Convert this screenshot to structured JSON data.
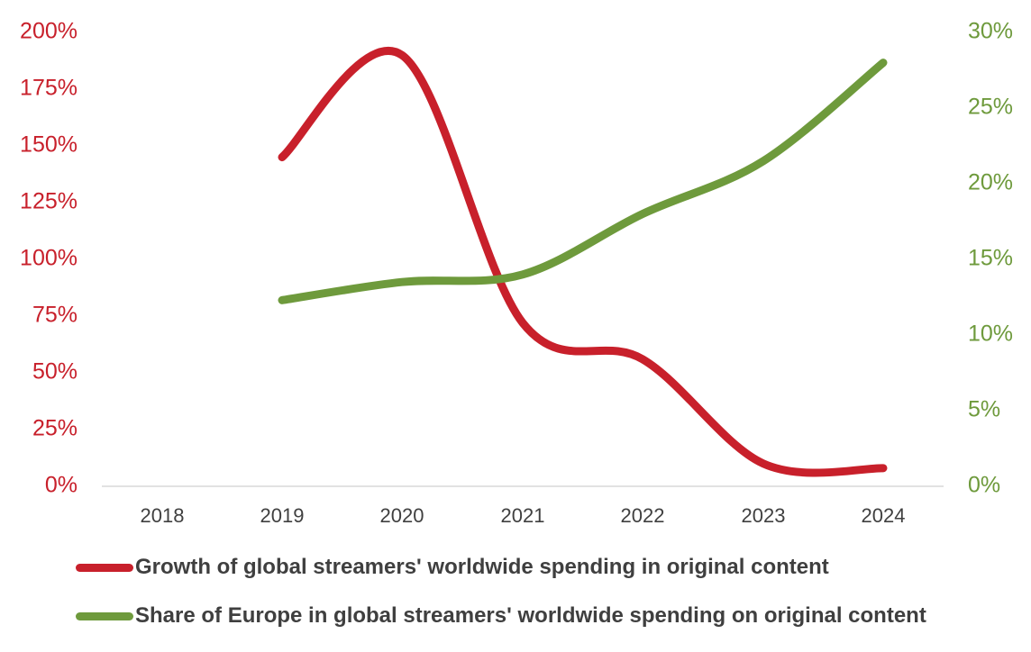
{
  "chart_data": {
    "type": "line",
    "categories": [
      "2018",
      "2019",
      "2020",
      "2021",
      "2022",
      "2023",
      "2024"
    ],
    "series": [
      {
        "name": "Growth of global streamers' worldwide spending in original content",
        "axis": "left",
        "color": "#c8202b",
        "values": [
          null,
          145,
          190,
          72,
          56,
          10,
          8
        ]
      },
      {
        "name": "Share of Europe in global streamers' worldwide spending on original content",
        "axis": "right",
        "color": "#6e9a3c",
        "values": [
          null,
          12.3,
          13.5,
          14,
          18,
          21.5,
          28
        ]
      }
    ],
    "left_axis": {
      "ticks": [
        "0%",
        "25%",
        "50%",
        "75%",
        "100%",
        "125%",
        "150%",
        "175%",
        "200%"
      ],
      "ylim": [
        0,
        200
      ],
      "color": "#c8202b"
    },
    "right_axis": {
      "ticks": [
        "0%",
        "5%",
        "10%",
        "15%",
        "20%",
        "25%",
        "30%"
      ],
      "ylim": [
        0,
        30
      ],
      "color": "#6e9a3c"
    },
    "grid": false,
    "legend_position": "bottom"
  }
}
